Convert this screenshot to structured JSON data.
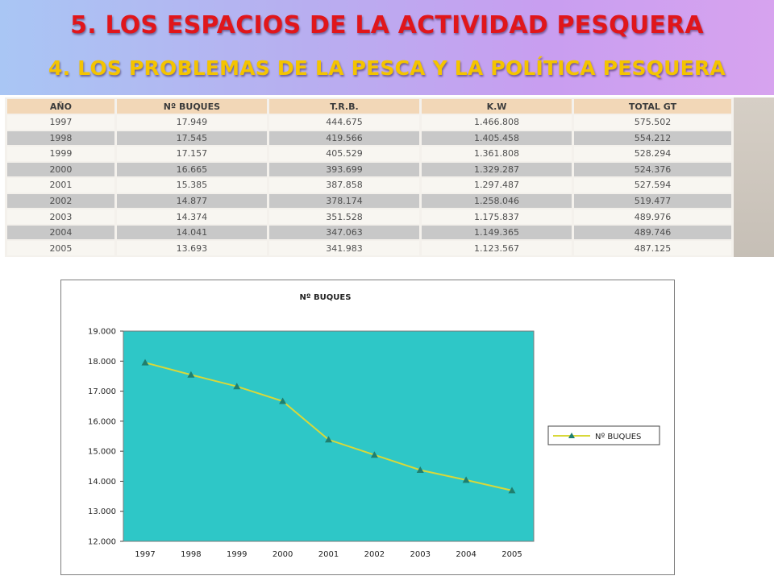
{
  "header": {
    "title": "5. LOS ESPACIOS DE LA ACTIVIDAD PESQUERA",
    "subtitle": "4. LOS PROBLEMAS DE LA PESCA Y LA POLÍTICA PESQUERA"
  },
  "table": {
    "columns": [
      "AÑO",
      "Nº BUQUES",
      "T.R.B.",
      "K.W",
      "TOTAL GT"
    ],
    "rows": [
      [
        "1997",
        "17.949",
        "444.675",
        "1.466.808",
        "575.502"
      ],
      [
        "1998",
        "17.545",
        "419.566",
        "1.405.458",
        "554.212"
      ],
      [
        "1999",
        "17.157",
        "405.529",
        "1.361.808",
        "528.294"
      ],
      [
        "2000",
        "16.665",
        "393.699",
        "1.329.287",
        "524.376"
      ],
      [
        "2001",
        "15.385",
        "387.858",
        "1.297.487",
        "527.594"
      ],
      [
        "2002",
        "14.877",
        "378.174",
        "1.258.046",
        "519.477"
      ],
      [
        "2003",
        "14.374",
        "351.528",
        "1.175.837",
        "489.976"
      ],
      [
        "2004",
        "14.041",
        "347.063",
        "1.149.365",
        "489.746"
      ],
      [
        "2005",
        "13.693",
        "341.983",
        "1.123.567",
        "487.125"
      ]
    ],
    "colors": {
      "header": "#f2d7b7",
      "row_light": "#f8f6f1",
      "row_dark": "#c8c8c8"
    }
  },
  "chart_data": {
    "type": "line",
    "title": "Nº BUQUES",
    "categories": [
      "1997",
      "1998",
      "1999",
      "2000",
      "2001",
      "2002",
      "2003",
      "2004",
      "2005"
    ],
    "series": [
      {
        "name": "Nº BUQUES",
        "values": [
          17949,
          17545,
          17157,
          16665,
          15385,
          14877,
          14374,
          14041,
          13693
        ],
        "color": "#d8d83a",
        "marker": "triangle",
        "marker_color": "#1f7f6f"
      }
    ],
    "ylim": [
      12000,
      19000
    ],
    "yticks": [
      "12.000",
      "13.000",
      "14.000",
      "15.000",
      "16.000",
      "17.000",
      "18.000",
      "19.000"
    ],
    "xlabel": "",
    "ylabel": "",
    "plot_background": "#2ec7c7",
    "grid": false,
    "legend_position": "right"
  }
}
